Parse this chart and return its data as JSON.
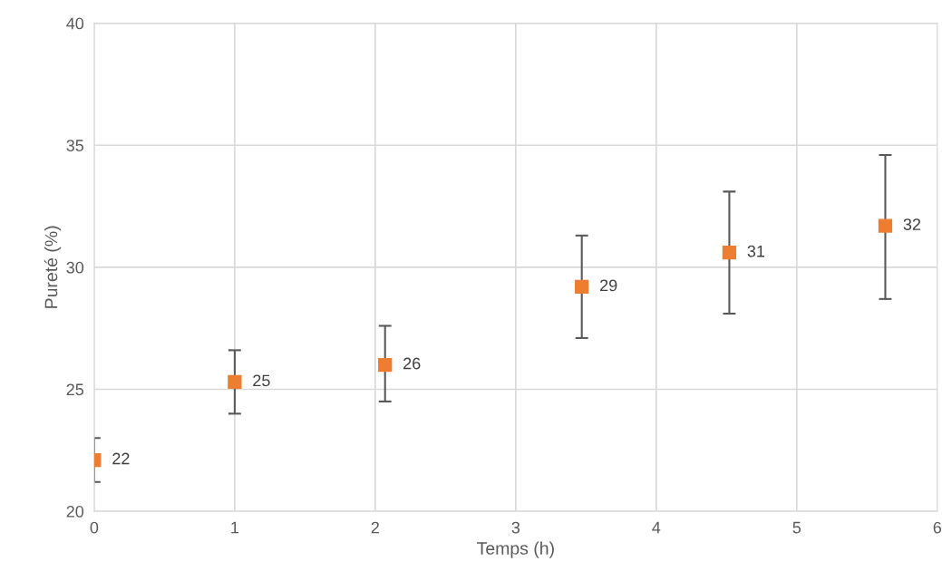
{
  "chart_data": {
    "type": "scatter",
    "xlabel": "Temps (h)",
    "ylabel": "Pureté (%)",
    "x": [
      0,
      1,
      2.07,
      3.47,
      4.52,
      5.63
    ],
    "series": [
      {
        "color": "#ed7d31",
        "values": [
          22.1,
          25.3,
          26.0,
          29.2,
          30.6,
          31.7
        ],
        "errors": [
          [
            21.2,
            23.0
          ],
          [
            24.0,
            26.6
          ],
          [
            24.5,
            27.6
          ],
          [
            27.1,
            31.3
          ],
          [
            28.1,
            33.1
          ],
          [
            28.7,
            34.6
          ]
        ],
        "value_labels": [
          "22",
          "25",
          "26",
          "29",
          "31",
          "32"
        ]
      }
    ],
    "xlim": [
      0,
      6
    ],
    "xticks": [
      0,
      1,
      2,
      3,
      4,
      5,
      6
    ],
    "ylim": [
      20,
      40
    ],
    "yticks": [
      20,
      25,
      30,
      35,
      40
    ],
    "grid": true,
    "marker": "square",
    "legend": false
  }
}
